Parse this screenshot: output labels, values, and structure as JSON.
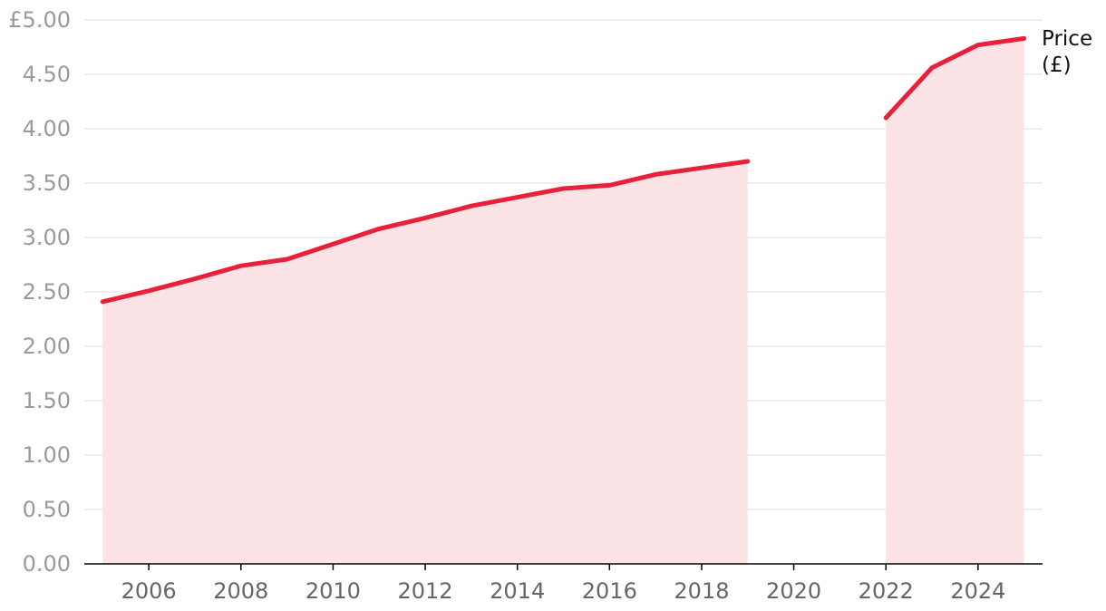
{
  "chart_data": {
    "type": "line",
    "title": "",
    "xlabel": "",
    "ylabel": "",
    "series": [
      {
        "name": "Price (£)",
        "x": [
          2005,
          2006,
          2007,
          2008,
          2009,
          2010,
          2011,
          2012,
          2013,
          2014,
          2015,
          2016,
          2017,
          2018,
          2019,
          2020,
          2021,
          2022,
          2023,
          2024,
          2025
        ],
        "values": [
          2.41,
          2.51,
          2.62,
          2.74,
          2.8,
          2.94,
          3.08,
          3.18,
          3.29,
          3.37,
          3.45,
          3.48,
          3.58,
          3.64,
          3.7,
          null,
          null,
          4.1,
          4.56,
          4.77,
          4.83
        ]
      }
    ],
    "series_label_lines": [
      "Price",
      "(£)"
    ],
    "y_ticks": [
      0,
      0.5,
      1,
      1.5,
      2,
      2.5,
      3,
      3.5,
      4,
      4.5,
      5
    ],
    "y_tick_labels": [
      "0.00",
      "0.50",
      "1.00",
      "1.50",
      "2.00",
      "2.50",
      "3.00",
      "3.50",
      "4.00",
      "4.50",
      "£5.00"
    ],
    "x_ticks": [
      2006,
      2008,
      2010,
      2012,
      2014,
      2016,
      2018,
      2020,
      2022,
      2024
    ],
    "x_tick_labels": [
      "2006",
      "2008",
      "2010",
      "2012",
      "2014",
      "2016",
      "2018",
      "2020",
      "2022",
      "2024"
    ],
    "xlim": [
      2004.6,
      2025.4
    ],
    "ylim": [
      0,
      5
    ],
    "grid": true,
    "legend": "none",
    "colors": {
      "line": "#e8203a",
      "area": "#fce4e6",
      "grid": "#dcdcdc",
      "axis": "#000000"
    }
  }
}
